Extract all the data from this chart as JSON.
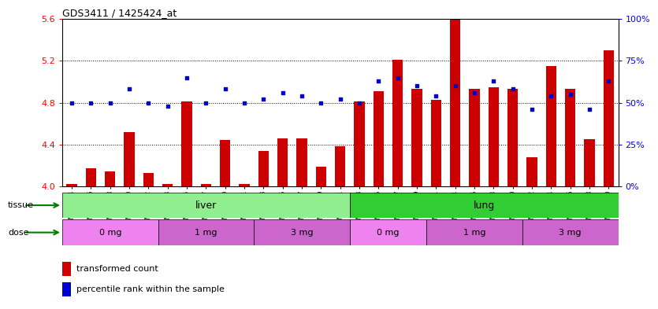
{
  "title": "GDS3411 / 1425424_at",
  "samples": [
    "GSM326974",
    "GSM326976",
    "GSM326978",
    "GSM326980",
    "GSM326982",
    "GSM326983",
    "GSM326985",
    "GSM326987",
    "GSM326989",
    "GSM326991",
    "GSM326993",
    "GSM326995",
    "GSM326997",
    "GSM326999",
    "GSM327001",
    "GSM326973",
    "GSM326975",
    "GSM326977",
    "GSM326979",
    "GSM326981",
    "GSM326984",
    "GSM326986",
    "GSM326988",
    "GSM326990",
    "GSM326992",
    "GSM326994",
    "GSM326996",
    "GSM326998",
    "GSM327000"
  ],
  "bar_values": [
    4.02,
    4.17,
    4.14,
    4.52,
    4.13,
    4.02,
    4.81,
    4.02,
    4.44,
    4.02,
    4.34,
    4.46,
    4.46,
    4.19,
    4.38,
    4.81,
    4.91,
    5.21,
    4.93,
    4.83,
    5.6,
    4.93,
    4.95,
    4.93,
    4.28,
    5.15,
    4.93,
    4.45,
    5.3
  ],
  "dot_percentiles": [
    50,
    50,
    50,
    58,
    50,
    48,
    65,
    50,
    58,
    50,
    52,
    56,
    54,
    50,
    52,
    50,
    63,
    65,
    60,
    54,
    60,
    56,
    63,
    58,
    46,
    54,
    55,
    46,
    63
  ],
  "ylim_left": [
    4.0,
    5.6
  ],
  "ylim_right": [
    0,
    100
  ],
  "yticks_left": [
    4.0,
    4.4,
    4.8,
    5.2,
    5.6
  ],
  "yticks_right": [
    0,
    25,
    50,
    75,
    100
  ],
  "grid_lines": [
    4.4,
    4.8,
    5.2
  ],
  "bar_color": "#CC0000",
  "dot_color": "#0000CC",
  "bar_bottom": 4.0,
  "n_liver": 15,
  "n_samples": 29,
  "liver_color": "#90EE90",
  "lung_color": "#32CD32",
  "dose_groups": [
    {
      "label": "0 mg",
      "start": 0,
      "end": 4,
      "color": "#EE82EE"
    },
    {
      "label": "1 mg",
      "start": 5,
      "end": 9,
      "color": "#CC66CC"
    },
    {
      "label": "3 mg",
      "start": 10,
      "end": 14,
      "color": "#CC66CC"
    },
    {
      "label": "0 mg",
      "start": 15,
      "end": 18,
      "color": "#EE82EE"
    },
    {
      "label": "1 mg",
      "start": 19,
      "end": 23,
      "color": "#CC66CC"
    },
    {
      "label": "3 mg",
      "start": 24,
      "end": 28,
      "color": "#CC66CC"
    }
  ],
  "legend_bar_label": "transformed count",
  "legend_dot_label": "percentile rank within the sample",
  "tissue_label": "tissue",
  "dose_label": "dose"
}
